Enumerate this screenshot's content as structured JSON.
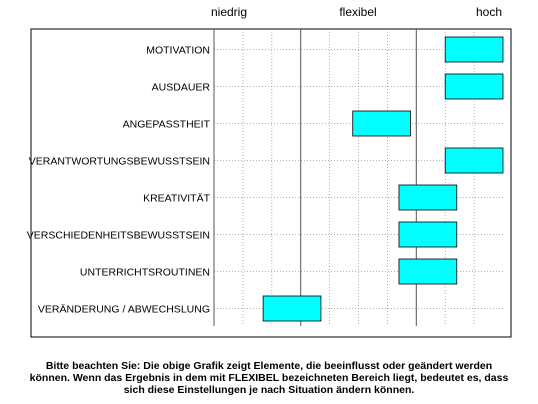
{
  "chart_data": {
    "type": "bar",
    "orientation": "horizontal-range",
    "scale_labels": [
      "niedrig",
      "flexibel",
      "hoch"
    ],
    "xlim": [
      0,
      10
    ],
    "grid": true,
    "bar_color": "#00ffff",
    "categories": [
      "MOTIVATION",
      "AUSDAUER",
      "ANGEPASSTHEIT",
      "VERANTWORTUNGSBEWUSSTSEIN",
      "KREATIVITÄT",
      "VERSCHIEDENHEITSBEWUSSTSEIN",
      "UNTERRICHTSROUTINEN",
      "VERÄNDERUNG / ABWECHSLUNG"
    ],
    "ranges": [
      [
        8,
        10
      ],
      [
        8,
        10
      ],
      [
        4.8,
        6.8
      ],
      [
        8,
        10
      ],
      [
        6.4,
        8.4
      ],
      [
        6.4,
        8.4
      ],
      [
        6.4,
        8.4
      ],
      [
        1.7,
        3.7
      ]
    ]
  },
  "footnote": [
    "Bitte beachten Sie: Die obige Grafik zeigt Elemente, die  beeinflusst oder geändert werden",
    "können. Wenn das Ergebnis in dem mit FLEXIBEL bezeichneten Bereich liegt,  bedeutet es, dass",
    "sich diese Einstellungen je nach Situation ändern können."
  ]
}
